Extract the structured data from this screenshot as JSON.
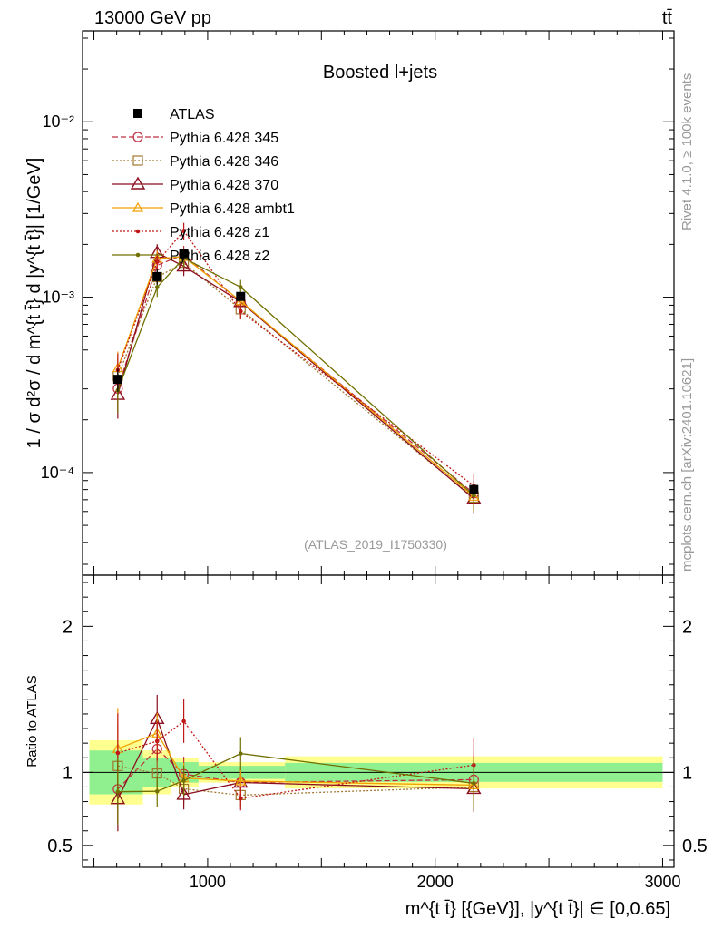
{
  "header": {
    "energy_label": "13000 GeV pp",
    "process_label": "tt̄"
  },
  "side_labels": {
    "rivet": "Rivet 4.1.0, ≥ 100k events",
    "mcplots": "mcplots.cern.ch [arXiv:2401.10621]"
  },
  "colors": {
    "data": "#000000",
    "p345": "#c03040",
    "p346": "#a07830",
    "p370": "#8b0f1e",
    "ambt1": "#f0a000",
    "z1": "#c01818",
    "z2": "#707000",
    "band_inner": "#90f090",
    "band_outer": "#ffff90"
  },
  "chart_data": {
    "type": "line",
    "title": "Boosted l+jets",
    "analysis_id": "(ATLAS_2019_I1750330)",
    "xlabel": "m^{t t̄} [{GeV}], |y^{t t̄}| ∈ [0,0.65]",
    "ylabel": "1 / σ d²σ / d m^{t t̄} d |y^{t t̄}| [1/GeV]",
    "ratio_ylabel": "Ratio to ATLAS",
    "xlim": [
      450,
      3050
    ],
    "ylim": [
      2.6e-05,
      0.033
    ],
    "yscale": "log",
    "ratio_ylim": [
      0.35,
      2.35
    ],
    "main_yticks": [
      {
        "value": 0.01,
        "label": "10⁻²"
      },
      {
        "value": 0.001,
        "label": "10⁻³"
      },
      {
        "value": 0.0001,
        "label": "10⁻⁴"
      }
    ],
    "ratio_yticks": [
      {
        "value": 0.5,
        "label": "0.5"
      },
      {
        "value": 1,
        "label": "1"
      },
      {
        "value": 2,
        "label": "2"
      }
    ],
    "xticks": [
      {
        "value": 1000,
        "label": "1000"
      },
      {
        "value": 2000,
        "label": "2000"
      },
      {
        "value": 3000,
        "label": "3000"
      }
    ],
    "data": {
      "name": "ATLAS",
      "x": [
        605,
        778,
        895,
        1145,
        2170
      ],
      "xlo": [
        480,
        715,
        840,
        960,
        1340
      ],
      "xhi": [
        715,
        840,
        960,
        1340,
        3000
      ],
      "y": [
        0.00034,
        0.00131,
        0.00177,
        0.00101,
        8e-05
      ],
      "band_inner": [
        0.15,
        0.1,
        0.07,
        0.045,
        0.065
      ],
      "band_outer": [
        0.22,
        0.15,
        0.1,
        0.07,
        0.11
      ]
    },
    "series": [
      {
        "name": "Pythia 6.428 345",
        "marker": "circle",
        "line": "dashed",
        "x": [
          605,
          778,
          895,
          1145,
          2170
        ],
        "y": [
          0.000301,
          0.00152,
          0.00175,
          0.00094,
          7.6e-05
        ],
        "err": [
          0.27,
          0.12,
          0.12,
          0.1,
          0.18
        ]
      },
      {
        "name": "Pythia 6.428 346",
        "marker": "square",
        "line": "dotted",
        "x": [
          605,
          778,
          895,
          1145,
          2170
        ],
        "y": [
          0.000355,
          0.0013,
          0.00157,
          0.000853,
          7.2e-05
        ],
        "err": [
          0.27,
          0.12,
          0.12,
          0.1,
          0.18
        ]
      },
      {
        "name": "Pythia 6.428 370",
        "marker": "triangle",
        "line": "solid",
        "x": [
          605,
          778,
          895,
          1145,
          2170
        ],
        "y": [
          0.000278,
          0.00179,
          0.0015,
          0.00094,
          7.1e-05
        ],
        "err": [
          0.27,
          0.12,
          0.12,
          0.1,
          0.18
        ]
      },
      {
        "name": "Pythia 6.428 ambt1",
        "marker": "triangle-small",
        "line": "solid",
        "x": [
          605,
          778,
          895,
          1145,
          2170
        ],
        "y": [
          0.000395,
          0.00166,
          0.0017,
          0.00095,
          7.3e-05
        ],
        "err": [
          0.24,
          0.11,
          0.11,
          0.1,
          0.18
        ]
      },
      {
        "name": "Pythia 6.428 z1",
        "marker": "dot",
        "line": "dotted",
        "x": [
          605,
          778,
          895,
          1145,
          2170
        ],
        "y": [
          0.000385,
          0.00159,
          0.00239,
          0.00083,
          8.4e-05
        ],
        "err": [
          0.24,
          0.11,
          0.11,
          0.1,
          0.18
        ]
      },
      {
        "name": "Pythia 6.428 z2",
        "marker": "dot",
        "line": "solid",
        "x": [
          605,
          778,
          895,
          1145,
          2170
        ],
        "y": [
          0.000295,
          0.00114,
          0.00167,
          0.00114,
          7.4e-05
        ],
        "err": [
          0.26,
          0.12,
          0.11,
          0.1,
          0.18
        ]
      }
    ]
  }
}
